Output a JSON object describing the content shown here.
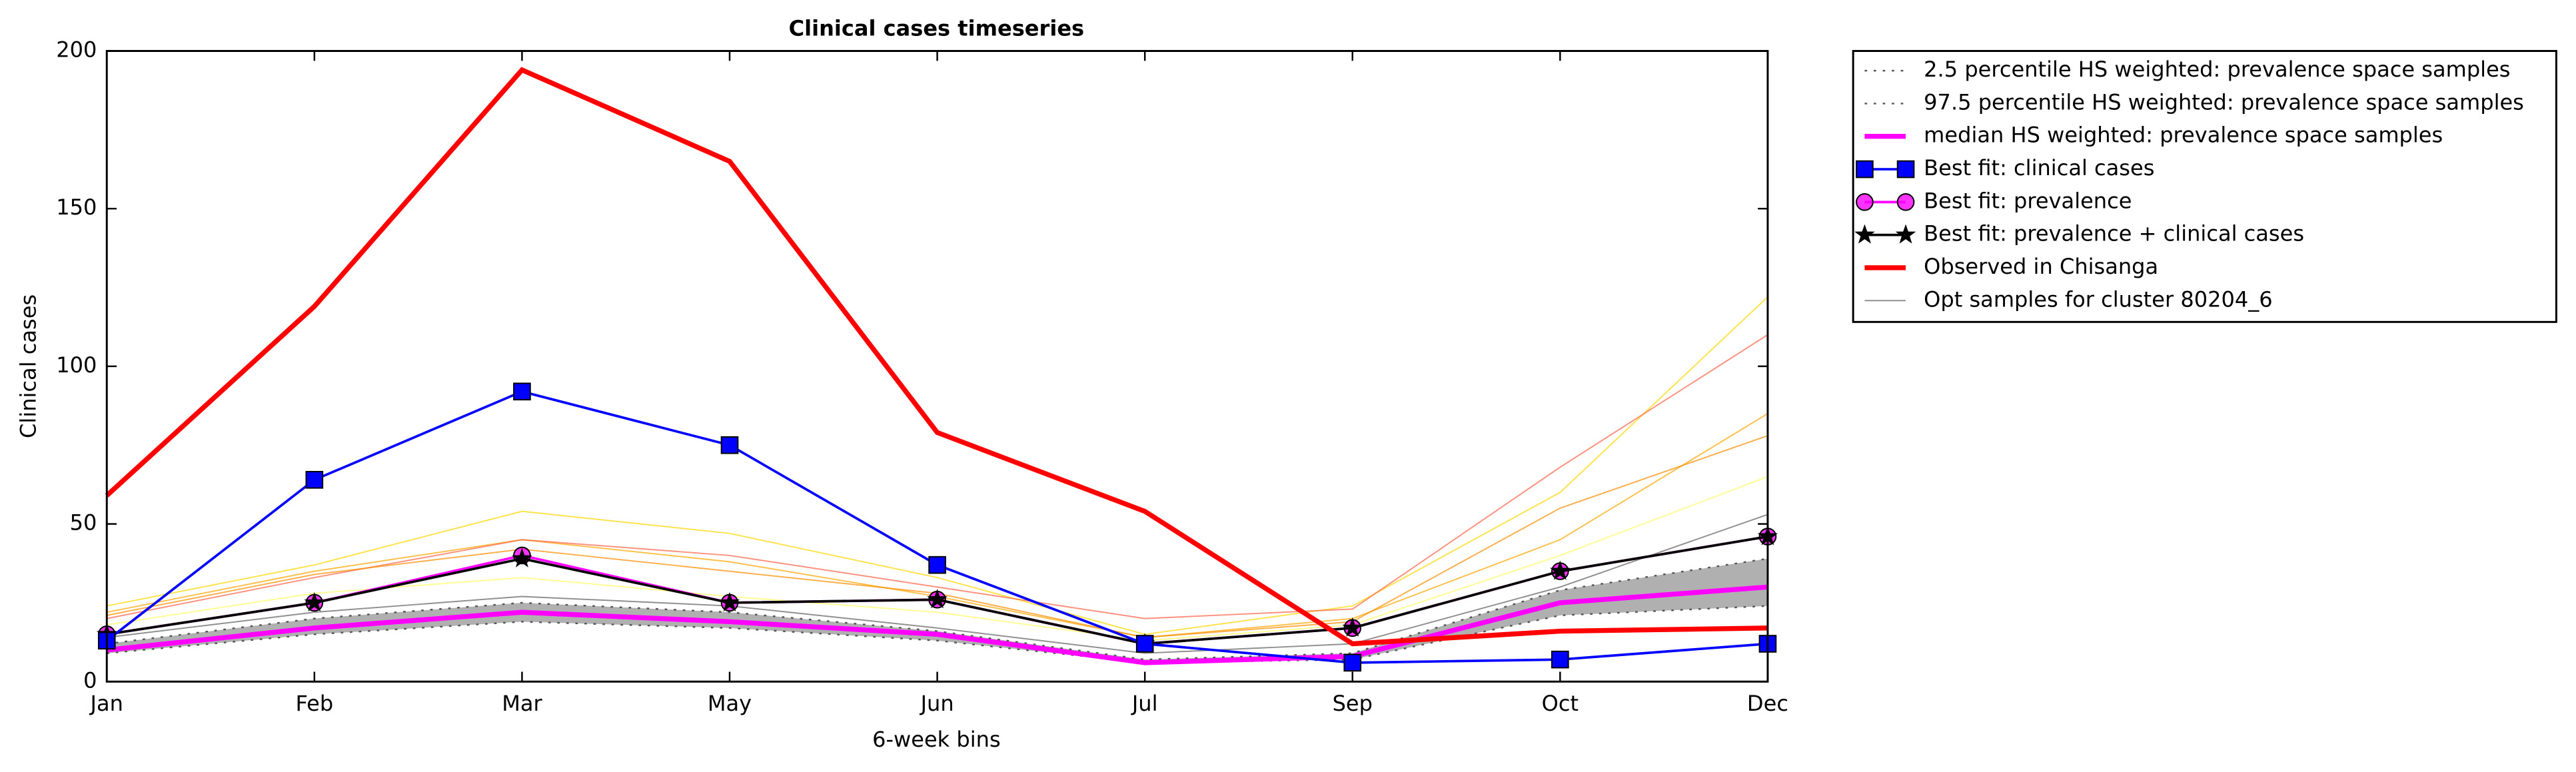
{
  "chart_data": {
    "type": "line",
    "title": "Clinical cases timeseries",
    "x_label": "6-week bins",
    "y_label": "Clinical cases",
    "categories": [
      "Jan",
      "Feb",
      "Mar",
      "May",
      "Jun",
      "Jul",
      "Sep",
      "Oct",
      "Dec"
    ],
    "ylim": [
      0,
      200
    ],
    "yticks": [
      0,
      50,
      100,
      150,
      200
    ],
    "band": {
      "lower": 0,
      "upper": 1,
      "color": "#b0b0b0"
    },
    "series": [
      {
        "name": "2.5 percentile HS weighted: prevalence space samples",
        "color": "#555555",
        "dash": "dotted",
        "width": 1,
        "values": [
          9,
          15,
          19,
          17,
          13,
          6,
          7,
          21,
          24
        ]
      },
      {
        "name": "97.5 percentile HS weighted: prevalence space samples",
        "color": "#555555",
        "dash": "dotted",
        "width": 1,
        "values": [
          12,
          20,
          25,
          22,
          16,
          7,
          9,
          29,
          39
        ]
      },
      {
        "name": "median HS weighted: prevalence space samples",
        "color": "#ff00ff",
        "width": 3,
        "values": [
          10,
          17,
          22,
          19,
          15,
          6,
          8,
          25,
          30
        ]
      },
      {
        "name": "Best fit: clinical cases",
        "color": "#0000ff",
        "width": 1.5,
        "marker": "square",
        "values": [
          13,
          64,
          92,
          75,
          37,
          12,
          6,
          7,
          12
        ]
      },
      {
        "name": "Best fit: prevalence",
        "color": "#ff00ff",
        "width": 1.5,
        "marker": "circle",
        "values": [
          15,
          25,
          40,
          25,
          26,
          12,
          17,
          35,
          46
        ]
      },
      {
        "name": "Best fit: prevalence + clinical cases",
        "color": "#000000",
        "width": 1.5,
        "marker": "star",
        "values": [
          15,
          25,
          39,
          25,
          26,
          12,
          17,
          35,
          46
        ]
      },
      {
        "name": "Observed in Chisanga",
        "color": "#ff0000",
        "width": 3,
        "values": [
          59,
          119,
          194,
          165,
          79,
          54,
          12,
          16,
          17
        ]
      },
      {
        "name": "Opt samples for cluster 80204_6",
        "color": "#909090",
        "width": 0.8,
        "values": [
          14,
          22,
          27,
          24,
          17,
          9,
          12,
          30,
          53
        ]
      }
    ],
    "samples": [
      {
        "color": "#ffa500",
        "values": [
          22,
          35,
          45,
          38,
          27,
          14,
          20,
          45,
          85
        ]
      },
      {
        "color": "#ffd700",
        "values": [
          24,
          37,
          54,
          47,
          33,
          15,
          24,
          60,
          122
        ]
      },
      {
        "color": "#ff6347",
        "values": [
          20,
          33,
          45,
          40,
          30,
          20,
          23,
          68,
          110
        ]
      },
      {
        "color": "#ffff66",
        "values": [
          18,
          28,
          33,
          27,
          22,
          13,
          18,
          40,
          65
        ]
      },
      {
        "color": "#ff8c00",
        "values": [
          21,
          34,
          42,
          35,
          28,
          14,
          19,
          55,
          78
        ]
      }
    ]
  }
}
